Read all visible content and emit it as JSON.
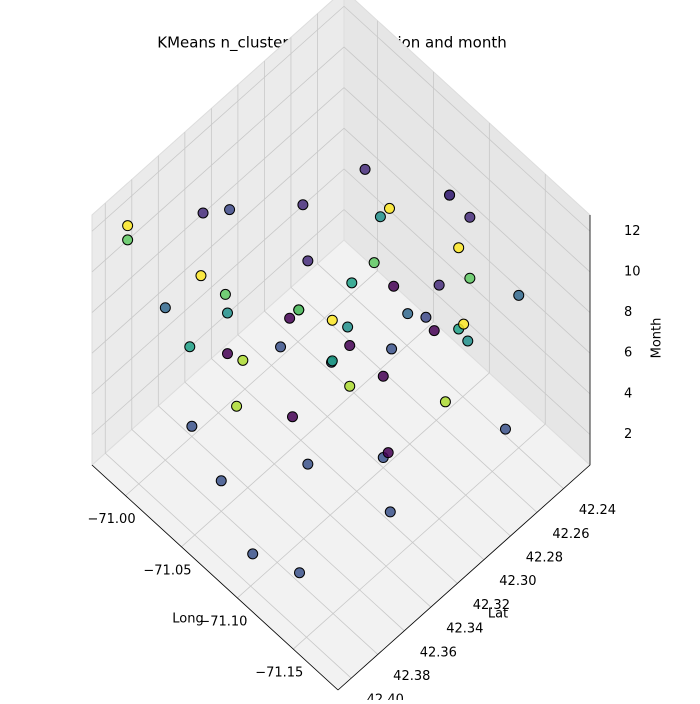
{
  "chart_data": {
    "type": "scatter3d",
    "title": "KMeans n_clusters = 10 in location and month",
    "xlabel": "Long",
    "ylabel": "Lat",
    "zlabel": "Month",
    "xlim": [
      -71.19,
      -70.97
    ],
    "xticks": [
      {
        "value": -71.0,
        "label": "−71.00"
      },
      {
        "value": -71.05,
        "label": "−71.05"
      },
      {
        "value": -71.1,
        "label": "−71.10"
      },
      {
        "value": -71.15,
        "label": "−71.15"
      }
    ],
    "ylim": [
      42.22,
      42.41
    ],
    "yticks": [
      {
        "value": 42.24,
        "label": "42.24"
      },
      {
        "value": 42.26,
        "label": "42.26"
      },
      {
        "value": 42.28,
        "label": "42.28"
      },
      {
        "value": 42.3,
        "label": "42.30"
      },
      {
        "value": 42.32,
        "label": "42.32"
      },
      {
        "value": 42.34,
        "label": "42.34"
      },
      {
        "value": 42.36,
        "label": "42.36"
      },
      {
        "value": 42.38,
        "label": "42.38"
      },
      {
        "value": 42.4,
        "label": "42.40"
      }
    ],
    "zlim": [
      0.5,
      12.8
    ],
    "zticks": [
      2,
      4,
      6,
      8,
      10,
      12
    ],
    "grid": true,
    "series": [
      {
        "color": "#3b528b",
        "long": [
          -71.0,
          -71.05,
          -71.1,
          -71.15,
          -71.08,
          -71.03,
          -71.12,
          -71.06,
          -71.13,
          -71.02,
          -71.09
        ],
        "lat": [
          42.36,
          42.38,
          42.3,
          42.25,
          42.34,
          42.28,
          42.38,
          42.26,
          42.32,
          42.31,
          42.39
        ],
        "month": [
          1,
          2,
          1,
          2,
          2,
          1,
          1,
          2,
          1,
          3,
          1
        ]
      },
      {
        "color": "#addc30",
        "long": [
          -71.01,
          -71.07,
          -71.12,
          -71.04
        ],
        "lat": [
          42.33,
          42.3,
          42.27,
          42.36
        ],
        "month": [
          3,
          3,
          3,
          4
        ]
      },
      {
        "color": "#440154",
        "long": [
          -71.02,
          -71.07,
          -71.11,
          -71.05,
          -71.14,
          -71.09,
          -71.04,
          -71.1
        ],
        "lat": [
          42.35,
          42.3,
          42.27,
          42.25,
          42.33,
          42.36,
          42.32,
          42.3
        ],
        "month": [
          5,
          5,
          6,
          4,
          5,
          6,
          6,
          5
        ]
      },
      {
        "color": "#1fa187",
        "long": [
          -71.01,
          -71.06,
          -71.12,
          -71.09
        ],
        "lat": [
          42.37,
          42.29,
          42.26,
          42.33
        ],
        "month": [
          6,
          7,
          6,
          7
        ]
      },
      {
        "color": "#21918c",
        "long": [
          -71.02,
          -71.08,
          -71.14,
          -71.05
        ],
        "lat": [
          42.35,
          42.31,
          42.27,
          42.26
        ],
        "month": [
          7,
          7,
          7,
          8
        ]
      },
      {
        "color": "#31688e",
        "long": [
          -71.0,
          -71.06,
          -71.11,
          -71.15
        ],
        "lat": [
          42.38,
          42.33,
          42.29,
          42.24
        ],
        "month": [
          8,
          8,
          8,
          8
        ]
      },
      {
        "color": "#5ec962",
        "long": [
          -71.03,
          -71.08,
          -71.13,
          -71.06,
          -70.99
        ],
        "lat": [
          42.36,
          42.29,
          42.26,
          42.33,
          42.4
        ],
        "month": [
          9,
          9,
          9,
          8,
          12
        ]
      },
      {
        "color": "#fde725",
        "long": [
          -71.02,
          -71.07,
          -71.12,
          -71.09,
          -71.16,
          -70.99
        ],
        "lat": [
          42.37,
          42.27,
          42.26,
          42.33,
          42.29,
          42.4
        ],
        "month": [
          10,
          10,
          10,
          9,
          10,
          12.7
        ]
      },
      {
        "color": "#3e4a89",
        "long": [
          -71.01,
          -71.1,
          -71.15
        ],
        "lat": [
          42.34,
          42.25,
          42.31
        ],
        "month": [
          11,
          11,
          11
        ]
      },
      {
        "color": "#472d7b",
        "long": [
          -71.01,
          -71.06,
          -71.1,
          -71.15,
          -71.08,
          -71.04,
          -71.13
        ],
        "lat": [
          42.36,
          42.28,
          42.25,
          42.3,
          42.34,
          42.31,
          42.26
        ],
        "month": [
          12,
          12,
          11,
          12,
          12,
          11,
          12
        ]
      }
    ]
  }
}
